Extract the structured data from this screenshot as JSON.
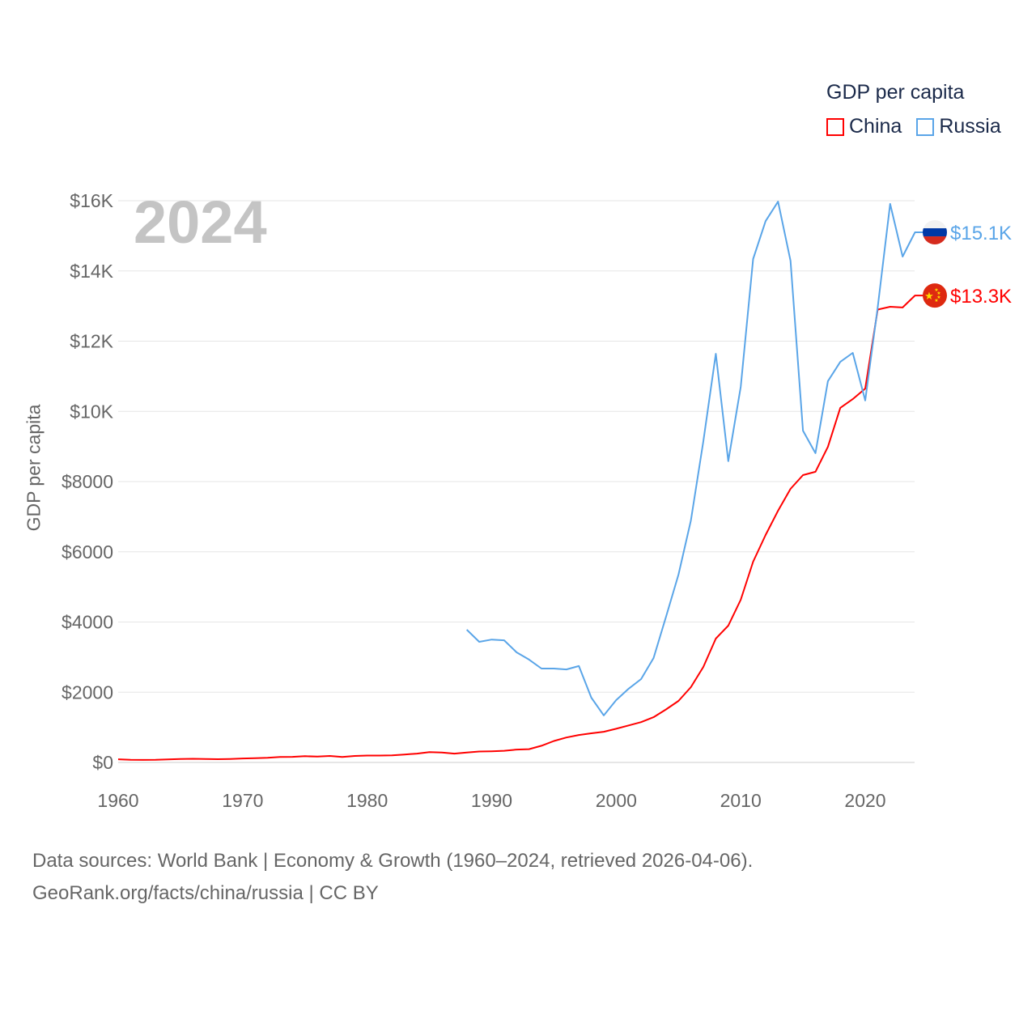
{
  "chart_data": {
    "type": "line",
    "title": "GDP per capita",
    "year_display": "2024",
    "ylabel": "GDP per capita",
    "xlabel": "",
    "xlim": [
      1960,
      2024
    ],
    "ylim": [
      0,
      16000
    ],
    "x_ticks": [
      1960,
      1970,
      1980,
      1990,
      2000,
      2010,
      2020
    ],
    "x_tick_labels": [
      "1960",
      "1970",
      "1980",
      "1990",
      "2000",
      "2010",
      "2020"
    ],
    "y_ticks": [
      0,
      2000,
      4000,
      6000,
      8000,
      10000,
      12000,
      14000,
      16000
    ],
    "y_tick_labels": [
      "$0",
      "$2000",
      "$4000",
      "$6000",
      "$8000",
      "$10K",
      "$12K",
      "$14K",
      "$16K"
    ],
    "grid": true,
    "legend_position": "top-right",
    "series": [
      {
        "name": "China",
        "color": "#ff0000",
        "end_label": "$13.3K",
        "flag": "china-flag",
        "x": [
          1960,
          1961,
          1962,
          1963,
          1964,
          1965,
          1966,
          1967,
          1968,
          1969,
          1970,
          1971,
          1972,
          1973,
          1974,
          1975,
          1976,
          1977,
          1978,
          1979,
          1980,
          1981,
          1982,
          1983,
          1984,
          1985,
          1986,
          1987,
          1988,
          1989,
          1990,
          1991,
          1992,
          1993,
          1994,
          1995,
          1996,
          1997,
          1998,
          1999,
          2000,
          2001,
          2002,
          2003,
          2004,
          2005,
          2006,
          2007,
          2008,
          2009,
          2010,
          2011,
          2012,
          2013,
          2014,
          2015,
          2016,
          2017,
          2018,
          2019,
          2020,
          2021,
          2022,
          2023,
          2024
        ],
        "values": [
          90,
          76,
          71,
          74,
          86,
          99,
          104,
          97,
          92,
          100,
          113,
          119,
          132,
          157,
          160,
          178,
          165,
          185,
          156,
          184,
          195,
          197,
          203,
          225,
          251,
          295,
          282,
          252,
          284,
          311,
          318,
          333,
          367,
          377,
          474,
          610,
          709,
          782,
          829,
          873,
          959,
          1053,
          1149,
          1289,
          1509,
          1753,
          2144,
          2720,
          3527,
          3896,
          4634,
          5718,
          6478,
          7170,
          7792,
          8184,
          8280,
          8990,
          10100,
          10350,
          10650,
          12900,
          12980,
          12960,
          13300
        ]
      },
      {
        "name": "Russia",
        "color": "#5aa5e8",
        "end_label": "$15.1K",
        "flag": "russia-flag",
        "x": [
          1988,
          1989,
          1990,
          1991,
          1992,
          1993,
          1994,
          1995,
          1996,
          1997,
          1998,
          1999,
          2000,
          2001,
          2002,
          2003,
          2004,
          2005,
          2006,
          2007,
          2008,
          2009,
          2010,
          2011,
          2012,
          2013,
          2014,
          2015,
          2016,
          2017,
          2018,
          2019,
          2020,
          2021,
          2022,
          2023,
          2024
        ],
        "values": [
          3780,
          3435,
          3500,
          3480,
          3135,
          2930,
          2675,
          2675,
          2650,
          2745,
          1845,
          1340,
          1775,
          2100,
          2375,
          2975,
          4150,
          5350,
          6890,
          9150,
          11640,
          8580,
          10700,
          14340,
          15420,
          15975,
          14290,
          9450,
          8810,
          10860,
          11410,
          11665,
          10310,
          12960,
          15910,
          14410,
          15100
        ]
      }
    ]
  },
  "footer": {
    "line1": "Data sources: World Bank | Economy & Growth (1960–2024, retrieved 2026-04-06).",
    "line2": "GeoRank.org/facts/china/russia | CC BY"
  }
}
